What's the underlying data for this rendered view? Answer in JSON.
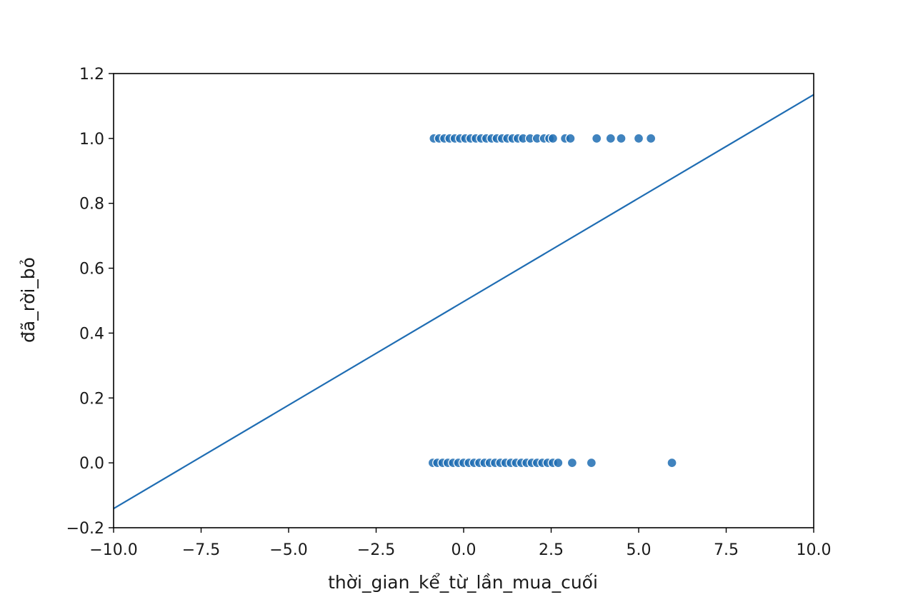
{
  "chart_data": {
    "type": "scatter",
    "xlabel": "thời_gian_kể_từ_lần_mua_cuối",
    "ylabel": "đã_rời_bỏ",
    "xlim": [
      -10.0,
      10.0
    ],
    "ylim": [
      -0.2,
      1.2
    ],
    "x_ticks": [
      -10.0,
      -7.5,
      -5.0,
      -2.5,
      0.0,
      2.5,
      5.0,
      7.5,
      10.0
    ],
    "x_tick_labels": [
      "−10.0",
      "−7.5",
      "−5.0",
      "−2.5",
      "0.0",
      "2.5",
      "5.0",
      "7.5",
      "10.0"
    ],
    "y_ticks": [
      -0.2,
      0.0,
      0.2,
      0.4,
      0.6,
      0.8,
      1.0,
      1.2
    ],
    "y_tick_labels": [
      "−0.2",
      "0.0",
      "0.2",
      "0.4",
      "0.6",
      "0.8",
      "1.0",
      "1.2"
    ],
    "grid": false,
    "legend": "none",
    "colors": {
      "points": "#1f6db3",
      "line": "#1f6db3",
      "axes": "#000000"
    },
    "series": [
      {
        "type": "scatter",
        "points": [
          [
            -0.85,
            1.0
          ],
          [
            -0.7,
            1.0
          ],
          [
            -0.55,
            1.0
          ],
          [
            -0.4,
            1.0
          ],
          [
            -0.25,
            1.0
          ],
          [
            -0.1,
            1.0
          ],
          [
            0.05,
            1.0
          ],
          [
            0.2,
            1.0
          ],
          [
            0.35,
            1.0
          ],
          [
            0.5,
            1.0
          ],
          [
            0.65,
            1.0
          ],
          [
            0.8,
            1.0
          ],
          [
            0.95,
            1.0
          ],
          [
            1.1,
            1.0
          ],
          [
            1.25,
            1.0
          ],
          [
            1.4,
            1.0
          ],
          [
            1.55,
            1.0
          ],
          [
            1.7,
            1.0
          ],
          [
            1.9,
            1.0
          ],
          [
            2.1,
            1.0
          ],
          [
            2.3,
            1.0
          ],
          [
            2.45,
            1.0
          ],
          [
            2.55,
            1.0
          ],
          [
            2.9,
            1.0
          ],
          [
            3.05,
            1.0
          ],
          [
            3.8,
            1.0
          ],
          [
            4.2,
            1.0
          ],
          [
            4.5,
            1.0
          ],
          [
            5.0,
            1.0
          ],
          [
            5.35,
            1.0
          ],
          [
            -0.88,
            0.0
          ],
          [
            -0.75,
            0.0
          ],
          [
            -0.6,
            0.0
          ],
          [
            -0.45,
            0.0
          ],
          [
            -0.3,
            0.0
          ],
          [
            -0.15,
            0.0
          ],
          [
            0.0,
            0.0
          ],
          [
            0.15,
            0.0
          ],
          [
            0.3,
            0.0
          ],
          [
            0.45,
            0.0
          ],
          [
            0.6,
            0.0
          ],
          [
            0.75,
            0.0
          ],
          [
            0.9,
            0.0
          ],
          [
            1.05,
            0.0
          ],
          [
            1.2,
            0.0
          ],
          [
            1.35,
            0.0
          ],
          [
            1.5,
            0.0
          ],
          [
            1.65,
            0.0
          ],
          [
            1.8,
            0.0
          ],
          [
            1.95,
            0.0
          ],
          [
            2.1,
            0.0
          ],
          [
            2.25,
            0.0
          ],
          [
            2.4,
            0.0
          ],
          [
            2.55,
            0.0
          ],
          [
            2.7,
            0.0
          ],
          [
            3.1,
            0.0
          ],
          [
            3.65,
            0.0
          ],
          [
            5.95,
            0.0
          ]
        ]
      },
      {
        "type": "line",
        "points": [
          [
            -10.0,
            -0.141
          ],
          [
            10.0,
            1.135
          ]
        ]
      }
    ]
  }
}
